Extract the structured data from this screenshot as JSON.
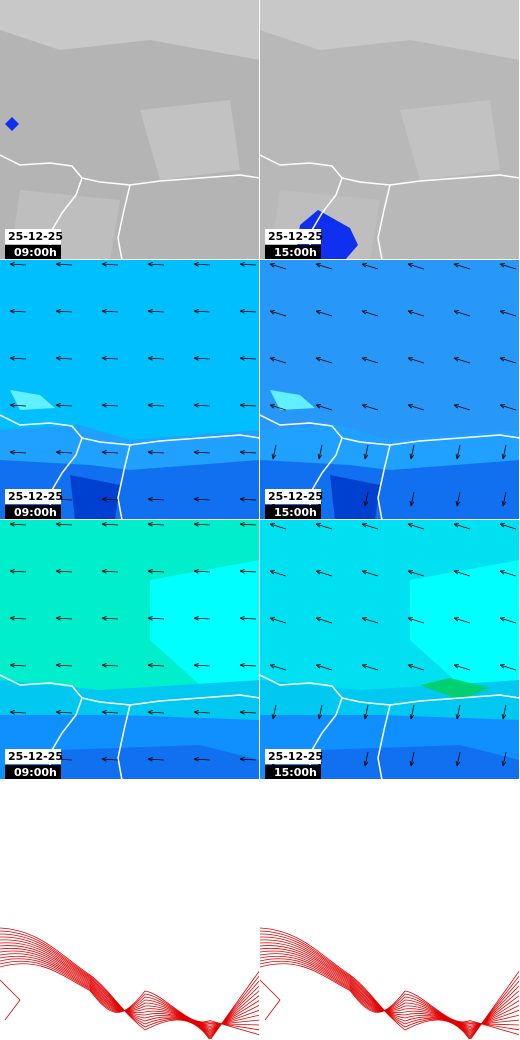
{
  "panels": [
    {
      "date": "25-12-25",
      "time": "09:00h"
    },
    {
      "date": "25-12-25",
      "time": "15:00h"
    },
    {
      "date": "25-12-25",
      "time": "09:00h"
    },
    {
      "date": "25-12-25",
      "time": "15:00h"
    },
    {
      "date": "25-12-25",
      "time": "09:00h"
    },
    {
      "date": "25-12-25",
      "time": "15:00h"
    }
  ]
}
